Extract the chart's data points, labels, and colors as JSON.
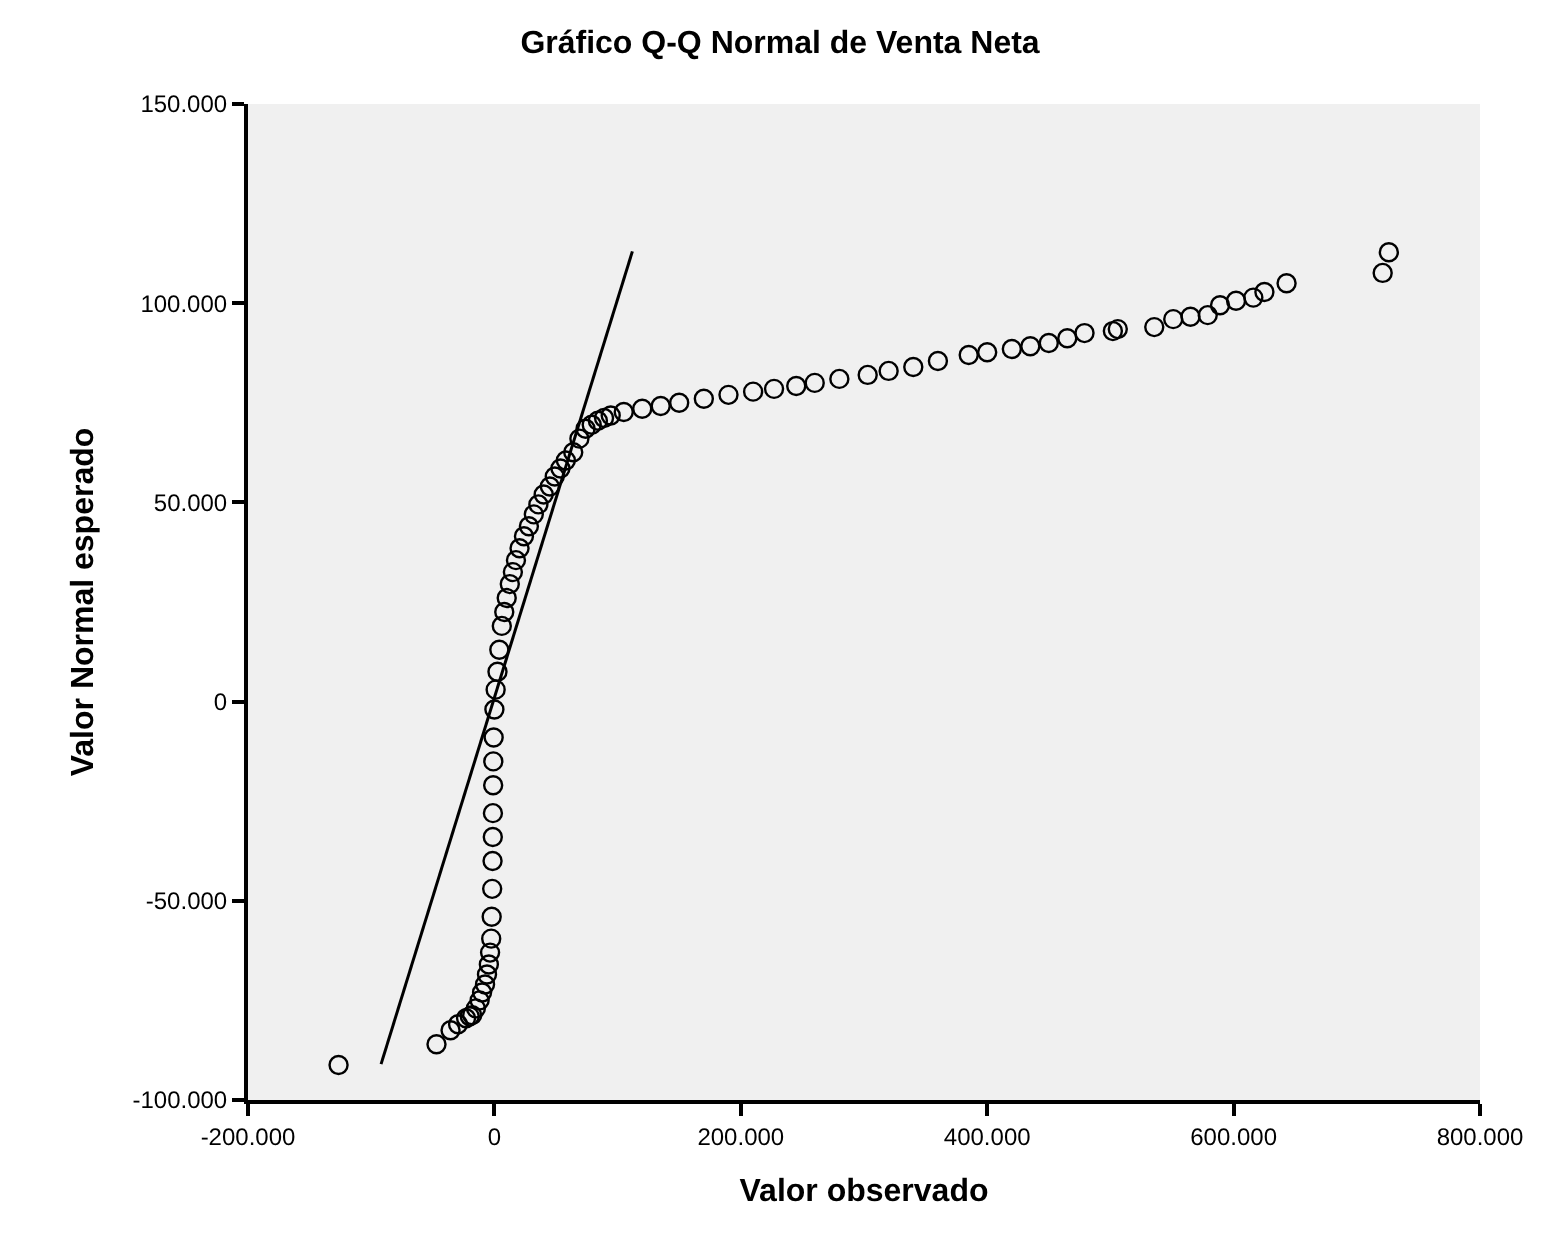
{
  "chart_data": {
    "type": "scatter",
    "title": "Gráfico Q-Q Normal de Venta Neta",
    "xlabel": "Valor observado",
    "ylabel": "Valor Normal esperado",
    "xlim": [
      -200000,
      800000
    ],
    "ylim": [
      -100000,
      150000
    ],
    "xticks": [
      {
        "value": -200000,
        "label": "-200.000"
      },
      {
        "value": 0,
        "label": "0"
      },
      {
        "value": 200000,
        "label": "200.000"
      },
      {
        "value": 400000,
        "label": "400.000"
      },
      {
        "value": 600000,
        "label": "600.000"
      },
      {
        "value": 800000,
        "label": "800.000"
      }
    ],
    "yticks": [
      {
        "value": -100000,
        "label": "-100.000"
      },
      {
        "value": -50000,
        "label": "-50.000"
      },
      {
        "value": 0,
        "label": "0"
      },
      {
        "value": 50000,
        "label": "50.000"
      },
      {
        "value": 100000,
        "label": "100.000"
      },
      {
        "value": 150000,
        "label": "150.000"
      }
    ],
    "grid": false,
    "series": [
      {
        "marker": "circle",
        "color": "#000000",
        "x": [
          -126500,
          -47000,
          -35600,
          -29500,
          -23000,
          -20000,
          -18000,
          -15000,
          -12000,
          -10000,
          -7600,
          -6000,
          -4500,
          -3500,
          -2600,
          -2200,
          -1800,
          -1500,
          -1300,
          -1200,
          -1000,
          -900,
          -600,
          0,
          1000,
          2500,
          4000,
          6000,
          8000,
          10000,
          12500,
          15000,
          17500,
          20400,
          24000,
          28000,
          32000,
          35700,
          40000,
          45000,
          49000,
          53600,
          58000,
          64000,
          69000,
          74000,
          79000,
          84000,
          89000,
          94400,
          105000,
          120000,
          135000,
          150000,
          170000,
          190000,
          210000,
          227000,
          245000,
          260000,
          280000,
          303000,
          320000,
          340000,
          360000,
          385000,
          400000,
          420000,
          435000,
          450000,
          465000,
          479000,
          502000,
          506000,
          535600,
          551000,
          565000,
          579000,
          589000,
          602000,
          616000,
          625000,
          643000,
          721000,
          726000
        ],
        "values": [
          -91200,
          -86000,
          -82500,
          -81000,
          -79500,
          -79000,
          -78700,
          -77000,
          -75000,
          -73000,
          -71000,
          -68500,
          -66000,
          -63000,
          -59500,
          -54000,
          -47000,
          -40000,
          -34000,
          -28000,
          -21000,
          -15000,
          -9000,
          -2000,
          3000,
          7500,
          13000,
          19000,
          22500,
          26000,
          29500,
          32500,
          35500,
          38500,
          41500,
          44000,
          47000,
          49500,
          52000,
          54000,
          56500,
          58500,
          60500,
          62600,
          66000,
          68500,
          69500,
          70500,
          71200,
          71800,
          72700,
          73500,
          74200,
          75000,
          76000,
          77000,
          77800,
          78500,
          79200,
          80000,
          81000,
          82000,
          83000,
          84000,
          85500,
          87000,
          87700,
          88500,
          89200,
          90000,
          91200,
          92500,
          93000,
          93500,
          94000,
          96000,
          96600,
          97000,
          99500,
          100600,
          101400,
          102800,
          105000,
          107600,
          112800
        ]
      },
      {
        "type": "line",
        "marker": "none",
        "line_style": "solid",
        "color": "#000000",
        "x": [
          -92000,
          112000
        ],
        "values": [
          -91000,
          113000
        ]
      }
    ]
  }
}
